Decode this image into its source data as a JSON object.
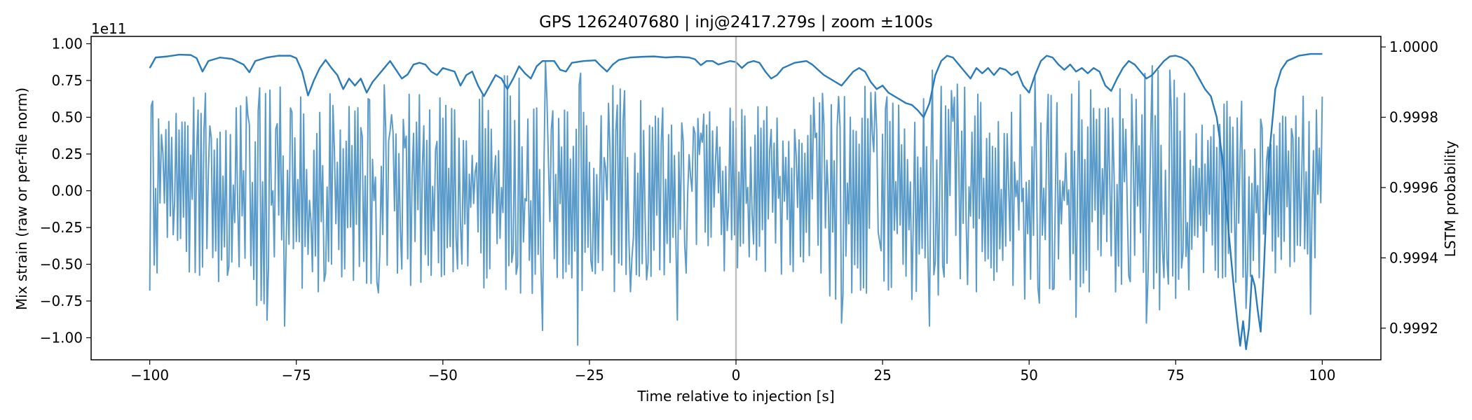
{
  "chart_data": {
    "type": "line",
    "title": "GPS 1262407680 | inj@2417.279s | zoom ±100s",
    "xlabel": "Time relative to injection [s]",
    "ylabel_left": "Mix strain (raw or per-file norm)",
    "ylabel_right": "LSTM probability",
    "left_offset_text": "1e11",
    "xlim": [
      -110,
      110
    ],
    "ylim_left": [
      -1.15,
      1.05
    ],
    "ylim_right": [
      0.99911,
      1.00003
    ],
    "x_ticks": [
      -100,
      -75,
      -50,
      -25,
      0,
      25,
      50,
      75,
      100
    ],
    "x_tick_labels": [
      "−100",
      "−75",
      "−50",
      "−25",
      "0",
      "25",
      "50",
      "75",
      "100"
    ],
    "y_left_ticks": [
      1.0,
      0.75,
      0.5,
      0.25,
      0.0,
      -0.25,
      -0.5,
      -0.75,
      -1.0
    ],
    "y_left_tick_labels": [
      "1.00",
      "0.75",
      "0.50",
      "0.25",
      "0.00",
      "−0.25",
      "−0.50",
      "−0.75",
      "−1.00"
    ],
    "y_right_ticks": [
      1.0,
      0.9998,
      0.9996,
      0.9994,
      0.9992
    ],
    "y_right_tick_labels": [
      "1.0000",
      "0.9998",
      "0.9996",
      "0.9994",
      "0.9992"
    ],
    "injection_marker_x": 0,
    "grid": false,
    "colors": {
      "strain": "#5b9bc9",
      "probability": "#2b7bb9",
      "marker": "#b0b0b0"
    },
    "series": [
      {
        "name": "Mix strain",
        "axis": "left",
        "style": "dense-oscillation",
        "x_range": [
          -100,
          100
        ],
        "sample_step": 0.25,
        "envelope": [
          [
            -100,
            0.62
          ],
          [
            -98,
            0.55
          ],
          [
            -95,
            0.6
          ],
          [
            -92,
            0.7
          ],
          [
            -88,
            0.62
          ],
          [
            -85,
            0.58
          ],
          [
            -82,
            0.78
          ],
          [
            -79,
            0.8
          ],
          [
            -76,
            0.62
          ],
          [
            -73,
            0.7
          ],
          [
            -70,
            0.68
          ],
          [
            -67,
            0.6
          ],
          [
            -64,
            0.64
          ],
          [
            -60,
            0.74
          ],
          [
            -57,
            0.64
          ],
          [
            -54,
            0.72
          ],
          [
            -51,
            0.68
          ],
          [
            -48,
            0.6
          ],
          [
            -45,
            0.64
          ],
          [
            -42,
            0.74
          ],
          [
            -39,
            0.82
          ],
          [
            -36,
            0.88
          ],
          [
            -33,
            0.76
          ],
          [
            -30,
            0.7
          ],
          [
            -27,
            0.74
          ],
          [
            -24,
            0.66
          ],
          [
            -21,
            0.72
          ],
          [
            -18,
            0.7
          ],
          [
            -15,
            0.62
          ],
          [
            -12,
            0.66
          ],
          [
            -9,
            0.6
          ],
          [
            -6,
            0.64
          ],
          [
            -3,
            0.6
          ],
          [
            0,
            0.6
          ],
          [
            3,
            0.62
          ],
          [
            6,
            0.58
          ],
          [
            9,
            0.56
          ],
          [
            12,
            0.6
          ],
          [
            15,
            0.72
          ],
          [
            18,
            0.78
          ],
          [
            21,
            0.72
          ],
          [
            24,
            0.7
          ],
          [
            27,
            0.72
          ],
          [
            30,
            0.76
          ],
          [
            33,
            0.78
          ],
          [
            36,
            0.74
          ],
          [
            39,
            0.72
          ],
          [
            42,
            0.7
          ],
          [
            45,
            0.66
          ],
          [
            48,
            0.74
          ],
          [
            51,
            0.8
          ],
          [
            54,
            0.72
          ],
          [
            57,
            0.78
          ],
          [
            60,
            0.72
          ],
          [
            63,
            0.7
          ],
          [
            66,
            0.72
          ],
          [
            69,
            0.8
          ],
          [
            72,
            0.82
          ],
          [
            75,
            0.76
          ],
          [
            78,
            0.68
          ],
          [
            81,
            0.66
          ],
          [
            84,
            0.64
          ],
          [
            87,
            0.62
          ],
          [
            90,
            0.6
          ],
          [
            93,
            0.58
          ],
          [
            96,
            0.66
          ],
          [
            100,
            0.64
          ]
        ],
        "spikes": [
          [
            -100,
            -0.68
          ],
          [
            -99.5,
            0.61
          ],
          [
            -80,
            -0.88
          ],
          [
            -77,
            -0.92
          ],
          [
            -60,
            0.72
          ],
          [
            -33,
            -0.95
          ],
          [
            -32.5,
            0.88
          ],
          [
            -27,
            -1.05
          ],
          [
            -26.6,
            0.8
          ],
          [
            -19,
            0.68
          ],
          [
            -10,
            -0.88
          ],
          [
            18,
            -0.9
          ],
          [
            33,
            -0.92
          ],
          [
            33.5,
            0.82
          ],
          [
            51,
            0.78
          ],
          [
            58,
            -0.86
          ],
          [
            70,
            -0.9
          ],
          [
            71,
            0.85
          ],
          [
            74,
            0.82
          ],
          [
            87,
            -0.8
          ],
          [
            98,
            -0.84
          ],
          [
            100,
            0.64
          ]
        ]
      },
      {
        "name": "LSTM probability",
        "axis": "right",
        "points": [
          [
            -100,
            0.99994
          ],
          [
            -99,
            0.99997
          ],
          [
            -97,
            0.999973
          ],
          [
            -95,
            0.999978
          ],
          [
            -93,
            0.999977
          ],
          [
            -92,
            0.999968
          ],
          [
            -91,
            0.99993
          ],
          [
            -90,
            0.99996
          ],
          [
            -88,
            0.99997
          ],
          [
            -86,
            0.999966
          ],
          [
            -84,
            0.99995
          ],
          [
            -83,
            0.999928
          ],
          [
            -82,
            0.99996
          ],
          [
            -80,
            0.99997
          ],
          [
            -78,
            0.999975
          ],
          [
            -76,
            0.999975
          ],
          [
            -75,
            0.999968
          ],
          [
            -74,
            0.99993
          ],
          [
            -73,
            0.999862
          ],
          [
            -72,
            0.999905
          ],
          [
            -71,
            0.99994
          ],
          [
            -70,
            0.999963
          ],
          [
            -69,
            0.99994
          ],
          [
            -68,
            0.99992
          ],
          [
            -67,
            0.99988
          ],
          [
            -66,
            0.99991
          ],
          [
            -65,
            0.99989
          ],
          [
            -64,
            0.99991
          ],
          [
            -63,
            0.99987
          ],
          [
            -62,
            0.9999
          ],
          [
            -61,
            0.99992
          ],
          [
            -60,
            0.99994
          ],
          [
            -59,
            0.99996
          ],
          [
            -58,
            0.999935
          ],
          [
            -57,
            0.99991
          ],
          [
            -56,
            0.999922
          ],
          [
            -55,
            0.99995
          ],
          [
            -54,
            0.999955
          ],
          [
            -53,
            0.99995
          ],
          [
            -52,
            0.99993
          ],
          [
            -51,
            0.99992
          ],
          [
            -50,
            0.99994
          ],
          [
            -48,
            0.99993
          ],
          [
            -47,
            0.99989
          ],
          [
            -46,
            0.99992
          ],
          [
            -45,
            0.99993
          ],
          [
            -44,
            0.99989
          ],
          [
            -43,
            0.99986
          ],
          [
            -42,
            0.99989
          ],
          [
            -41,
            0.99992
          ],
          [
            -40,
            0.99991
          ],
          [
            -39,
            0.99988
          ],
          [
            -38,
            0.99991
          ],
          [
            -37,
            0.999945
          ],
          [
            -36,
            0.999925
          ],
          [
            -35,
            0.99991
          ],
          [
            -34,
            0.999945
          ],
          [
            -33,
            0.99996
          ],
          [
            -31,
            0.99996
          ],
          [
            -30,
            0.999935
          ],
          [
            -29,
            0.99993
          ],
          [
            -28,
            0.999955
          ],
          [
            -26,
            0.99996
          ],
          [
            -24,
            0.999962
          ],
          [
            -23,
            0.999945
          ],
          [
            -22,
            0.99993
          ],
          [
            -21,
            0.99995
          ],
          [
            -20,
            0.999963
          ],
          [
            -18,
            0.99997
          ],
          [
            -16,
            0.999972
          ],
          [
            -14,
            0.999973
          ],
          [
            -12,
            0.99997
          ],
          [
            -10,
            0.999972
          ],
          [
            -8,
            0.99997
          ],
          [
            -7,
            0.999965
          ],
          [
            -6,
            0.999948
          ],
          [
            -5,
            0.99996
          ],
          [
            -4,
            0.99996
          ],
          [
            -3,
            0.99995
          ],
          [
            -2,
            0.999955
          ],
          [
            -1,
            0.99996
          ],
          [
            0,
            0.999957
          ],
          [
            1,
            0.99994
          ],
          [
            2,
            0.999955
          ],
          [
            3,
            0.99996
          ],
          [
            4,
            0.999955
          ],
          [
            5,
            0.99993
          ],
          [
            6,
            0.99991
          ],
          [
            7,
            0.99992
          ],
          [
            8,
            0.99994
          ],
          [
            10,
            0.999955
          ],
          [
            12,
            0.99996
          ],
          [
            13,
            0.99995
          ],
          [
            14,
            0.999935
          ],
          [
            15,
            0.99992
          ],
          [
            16,
            0.99991
          ],
          [
            17,
            0.9999
          ],
          [
            18,
            0.99989
          ],
          [
            19,
            0.99991
          ],
          [
            20,
            0.99993
          ],
          [
            21,
            0.99994
          ],
          [
            22,
            0.99993
          ],
          [
            23,
            0.9999
          ],
          [
            24,
            0.99988
          ],
          [
            25,
            0.99989
          ],
          [
            26,
            0.99987
          ],
          [
            27,
            0.99986
          ],
          [
            28,
            0.99985
          ],
          [
            29,
            0.99984
          ],
          [
            30,
            0.999835
          ],
          [
            31,
            0.99982
          ],
          [
            32,
            0.9998
          ],
          [
            33,
            0.99984
          ],
          [
            34,
            0.99992
          ],
          [
            35,
            0.99996
          ],
          [
            36,
            0.999975
          ],
          [
            37,
            0.99997
          ],
          [
            38,
            0.99995
          ],
          [
            39,
            0.99993
          ],
          [
            40,
            0.99991
          ],
          [
            41,
            0.99994
          ],
          [
            42,
            0.999925
          ],
          [
            43,
            0.99994
          ],
          [
            44,
            0.99992
          ],
          [
            45,
            0.99994
          ],
          [
            46,
            0.999935
          ],
          [
            47,
            0.99992
          ],
          [
            48,
            0.99993
          ],
          [
            49,
            0.99989
          ],
          [
            50,
            0.99987
          ],
          [
            51,
            0.99992
          ],
          [
            52,
            0.99996
          ],
          [
            53,
            0.999975
          ],
          [
            54,
            0.99997
          ],
          [
            55,
            0.99995
          ],
          [
            56,
            0.999935
          ],
          [
            57,
            0.99995
          ],
          [
            58,
            0.99993
          ],
          [
            59,
            0.99994
          ],
          [
            60,
            0.999925
          ],
          [
            61,
            0.99994
          ],
          [
            62,
            0.99993
          ],
          [
            63,
            0.99989
          ],
          [
            64,
            0.999875
          ],
          [
            65,
            0.99991
          ],
          [
            66,
            0.99994
          ],
          [
            67,
            0.99996
          ],
          [
            68,
            0.99995
          ],
          [
            69,
            0.99993
          ],
          [
            70,
            0.99991
          ],
          [
            71,
            0.99992
          ],
          [
            72,
            0.99994
          ],
          [
            73,
            0.99996
          ],
          [
            74,
            0.999973
          ],
          [
            75,
            0.999975
          ],
          [
            76,
            0.99997
          ],
          [
            77,
            0.99996
          ],
          [
            78,
            0.99994
          ],
          [
            79,
            0.99991
          ],
          [
            80,
            0.99988
          ],
          [
            81,
            0.99986
          ],
          [
            82,
            0.9998
          ],
          [
            83,
            0.99968
          ],
          [
            84,
            0.99948
          ],
          [
            85,
            0.9993
          ],
          [
            85.5,
            0.99922
          ],
          [
            86,
            0.99915
          ],
          [
            86.5,
            0.99922
          ],
          [
            87,
            0.99914
          ],
          [
            87.5,
            0.9992
          ],
          [
            88,
            0.99935
          ],
          [
            88.5,
            0.99932
          ],
          [
            89,
            0.99925
          ],
          [
            89.5,
            0.99919
          ],
          [
            90,
            0.99935
          ],
          [
            90.5,
            0.99955
          ],
          [
            91,
            0.9997
          ],
          [
            92,
            0.99988
          ],
          [
            93,
            0.999935
          ],
          [
            94,
            0.99996
          ],
          [
            96,
            0.999975
          ],
          [
            98,
            0.99998
          ],
          [
            100,
            0.99998
          ]
        ]
      }
    ]
  }
}
